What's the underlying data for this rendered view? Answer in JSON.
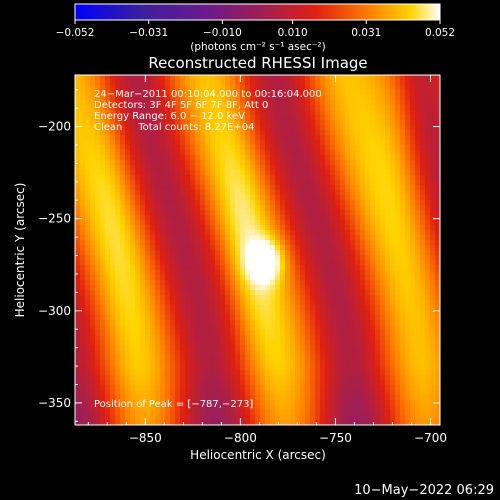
{
  "chart_data": {
    "type": "heatmap",
    "title": "Reconstructed RHESSI Image",
    "xlabel": "Heliocentric X (arcsec)",
    "ylabel": "Heliocentric Y (arcsec)",
    "xlim": [
      -887,
      -695
    ],
    "ylim": [
      -362,
      -172
    ],
    "x_ticks": [
      -850,
      -800,
      -750,
      -700
    ],
    "y_ticks": [
      -200,
      -250,
      -300,
      -350
    ],
    "x_tick_labels": [
      "−850",
      "−800",
      "−750",
      "−700"
    ],
    "y_tick_labels": [
      "−200",
      "−250",
      "−300",
      "−350"
    ],
    "colorbar": {
      "range": [
        -0.052,
        0.052
      ],
      "tick_values": [
        -0.052,
        -0.031,
        -0.01,
        0.01,
        0.031,
        0.052
      ],
      "tick_labels": [
        "−0.052",
        "−0.031",
        "−0.010",
        "0.010",
        "0.031",
        "0.052"
      ],
      "units": "(photons cm⁻² s⁻¹ asec⁻²)",
      "colormap": [
        "#0000ff",
        "#3a1f9c",
        "#6b1a8c",
        "#a01f52",
        "#e02010",
        "#ff7a00",
        "#ffd400",
        "#ffffff"
      ]
    },
    "annotations": [
      "24−Mar−2011 00:10:04.000 to 00:16:04.000",
      "Detectors: 3F 4F 5F 6F 7F 8F, Att 0",
      "Energy Range: 6.0 − 12.0 keV",
      "Clean     Total counts: 8.27E+04"
    ],
    "peak_label": "Position of Peak = [−787,−273]",
    "peak": {
      "x": -787,
      "y": -273,
      "value": 0.052
    },
    "ridges": [
      {
        "x": -867,
        "y_peak": -240,
        "value": 0.03
      },
      {
        "x": -795,
        "y_peak": -273,
        "value": 0.052
      },
      {
        "x": -720,
        "y_peak": -185,
        "value": 0.04
      }
    ],
    "grid": false,
    "legend": "none"
  },
  "footer": {
    "timestamp": "10−May−2022 06:29"
  }
}
